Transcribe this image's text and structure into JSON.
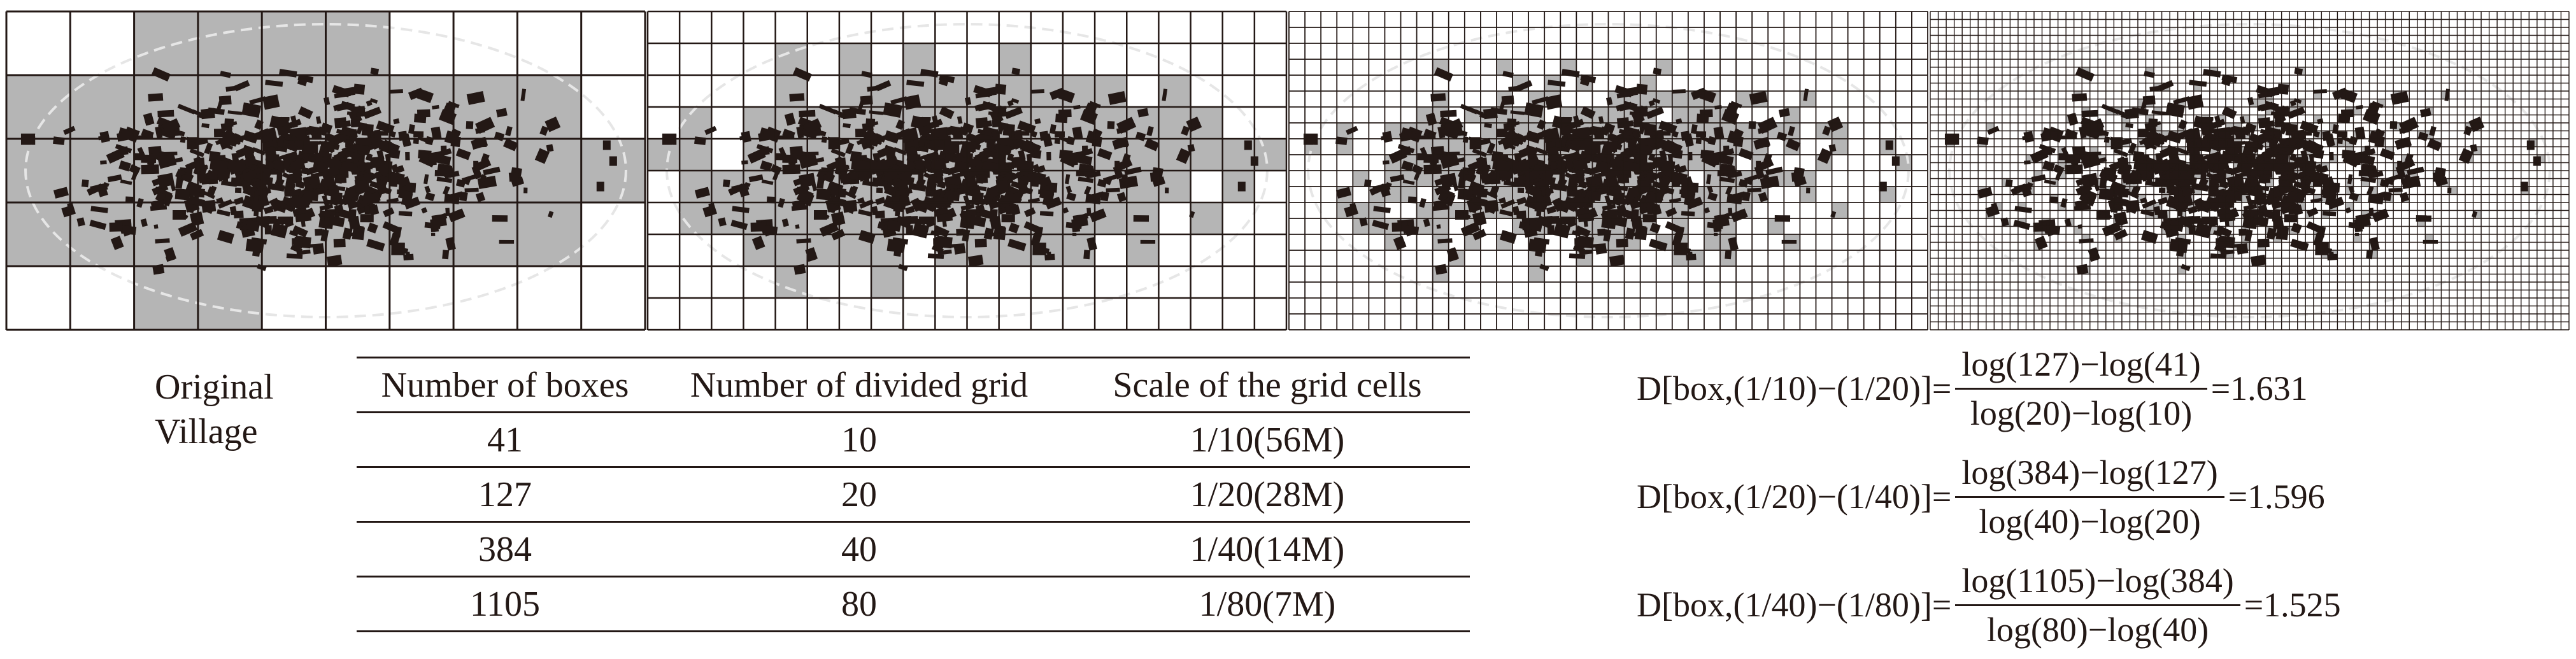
{
  "left_label": [
    "Original",
    "Village"
  ],
  "table": {
    "headers": [
      "Number of boxes",
      "Number of divided grid",
      "Scale of the grid cells"
    ],
    "rows": [
      [
        "41",
        "10",
        "1/10(56M)"
      ],
      [
        "127",
        "20",
        "1/20(28M)"
      ],
      [
        "384",
        "40",
        "1/40(14M)"
      ],
      [
        "1105",
        "80",
        "1/80(7M)"
      ]
    ]
  },
  "formulas": [
    {
      "lhs": "D[box,(1/10)−(1/20)]=",
      "num": "log(127)−log(41)",
      "den": "log(20)−log(10)",
      "result": "=1.631"
    },
    {
      "lhs": "D[box,(1/20)−(1/40)]=",
      "num": "log(384)−log(127)",
      "den": "log(40)−log(20)",
      "result": "=1.596"
    },
    {
      "lhs": "D[box,(1/40)−(1/80)]=",
      "num": "log(1105)−log(384)",
      "den": "log(80)−log(40)",
      "result": "=1.525"
    }
  ],
  "panels": [
    {
      "grid_divisions": 10
    },
    {
      "grid_divisions": 20
    },
    {
      "grid_divisions": 40
    },
    {
      "grid_divisions": 80
    }
  ],
  "colors": {
    "building": "#231815",
    "occupied_box": "#b5b5b5",
    "grid_line": "#231815",
    "outline": "#e6e6e6"
  }
}
